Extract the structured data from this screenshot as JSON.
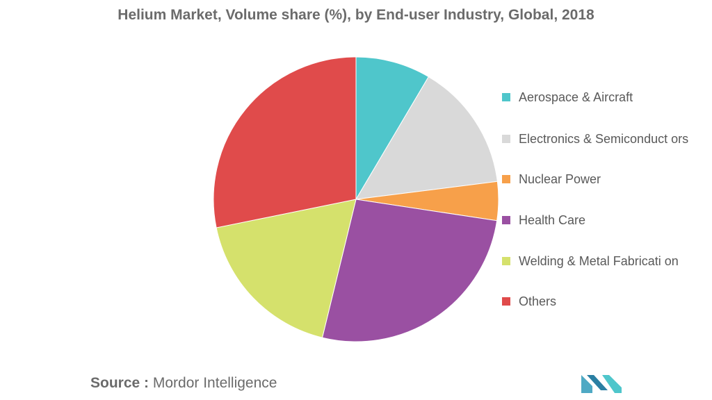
{
  "chart_data": {
    "type": "pie",
    "title": "Helium Market, Volume share (%), by End-user Industry, Global, 2018",
    "categories": [
      "Aerospace & Aircraft",
      "Electronics & Semiconductors",
      "Nuclear Power",
      "Health Care",
      "Welding & Metal Fabrication",
      "Others"
    ],
    "legend_labels": [
      "Aerospace & Aircraft",
      "Electronics & Semiconduct ors",
      "Nuclear Power",
      "Health Care",
      "Welding & Metal Fabricati on",
      "Others"
    ],
    "values": [
      8.5,
      14.5,
      4.4,
      26.4,
      18.0,
      28.2
    ],
    "colors": [
      "#4fc6cb",
      "#d9d9d9",
      "#f7a04a",
      "#9a50a2",
      "#d5e16c",
      "#e04b4b"
    ],
    "start_angle_deg": 0,
    "direction": "clockwise",
    "legend_position": "right"
  },
  "source": {
    "label": "Source :",
    "text": "Mordor Intelligence"
  },
  "logo": {
    "name": "mordor-intelligence-logo",
    "color": "#4fa9c4"
  }
}
